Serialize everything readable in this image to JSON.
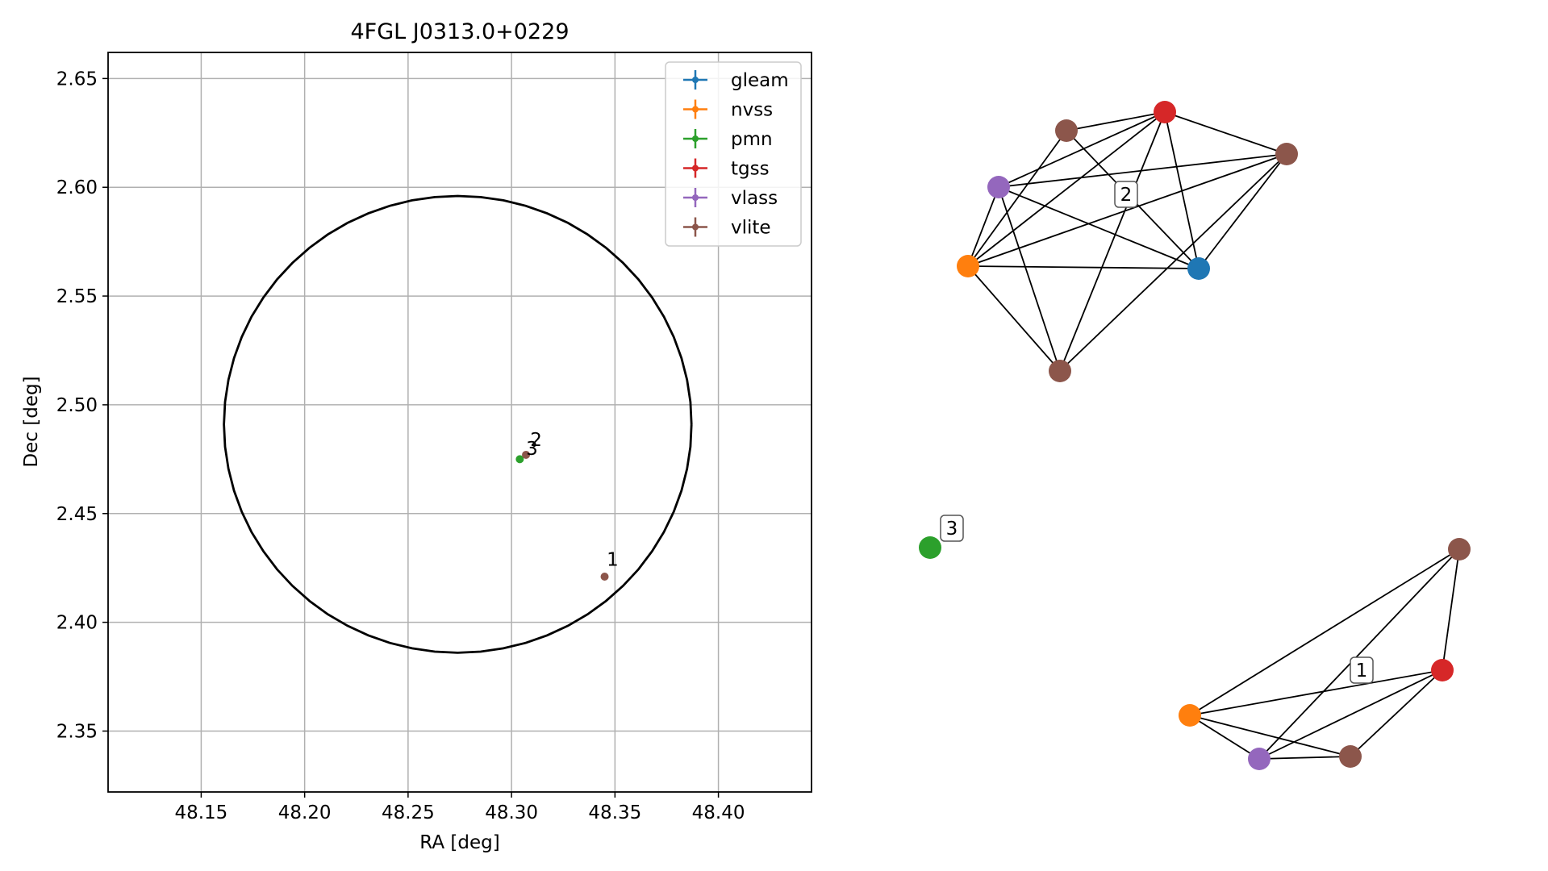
{
  "chart_data": [
    {
      "type": "scatter",
      "title": "4FGL J0313.0+0229",
      "xlabel": "RA [deg]",
      "ylabel": "Dec [deg]",
      "xlim": [
        48.105,
        48.445
      ],
      "ylim": [
        2.322,
        2.662
      ],
      "xticks": [
        48.15,
        48.2,
        48.25,
        48.3,
        48.35,
        48.4
      ],
      "xtick_labels": [
        "48.15",
        "48.20",
        "48.25",
        "48.30",
        "48.35",
        "48.40"
      ],
      "yticks": [
        2.35,
        2.4,
        2.45,
        2.5,
        2.55,
        2.6,
        2.65
      ],
      "ytick_labels": [
        "2.35",
        "2.40",
        "2.45",
        "2.50",
        "2.55",
        "2.60",
        "2.65"
      ],
      "grid": true,
      "legend_position": "top-right",
      "series": [
        {
          "name": "gleam",
          "color": "#1f77b4",
          "points": []
        },
        {
          "name": "nvss",
          "color": "#ff7f0e",
          "points": []
        },
        {
          "name": "pmn",
          "color": "#2ca02c",
          "points": [
            [
              48.304,
              2.475
            ]
          ]
        },
        {
          "name": "tgss",
          "color": "#d62728",
          "points": []
        },
        {
          "name": "vlass",
          "color": "#9467bd",
          "points": []
        },
        {
          "name": "vlite",
          "color": "#8c564b",
          "points": [
            [
              48.307,
              2.477
            ],
            [
              48.345,
              2.421
            ]
          ]
        }
      ],
      "circle": {
        "center": [
          48.274,
          2.491
        ],
        "radius_ra": 0.113,
        "radius_dec": 0.105
      },
      "annotations": [
        {
          "text": "1",
          "x": 48.346,
          "y": 2.426
        },
        {
          "text": "2",
          "x": 48.309,
          "y": 2.481
        },
        {
          "text": "3",
          "x": 48.307,
          "y": 2.477
        }
      ]
    },
    {
      "type": "network",
      "groups": [
        {
          "label": "2",
          "nodes": [
            "gleam",
            "nvss",
            "tgss",
            "vlass",
            "vlite",
            "vlite",
            "vlite"
          ]
        },
        {
          "label": "3",
          "nodes": [
            "pmn"
          ]
        },
        {
          "label": "1",
          "nodes": [
            "nvss",
            "tgss",
            "vlass",
            "vlite",
            "vlite"
          ]
        }
      ]
    }
  ]
}
